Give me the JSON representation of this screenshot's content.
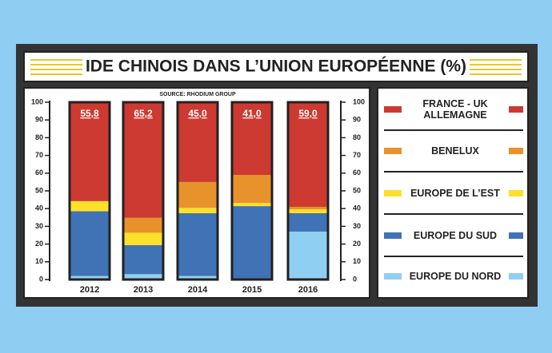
{
  "chart_data": {
    "type": "bar",
    "stacked": true,
    "title": "IDE CHINOIS DANS L’UNION EUROPÉENNE (%)",
    "source": "SOURCE: RHODIUM GROUP",
    "categories": [
      "2012",
      "2013",
      "2014",
      "2015",
      "2016"
    ],
    "series": [
      {
        "name": "EUROPE DU NORD",
        "color": "#8fd0f2",
        "values": [
          2,
          3,
          2,
          0,
          27
        ]
      },
      {
        "name": "EUROPE DU SUD",
        "color": "#3f73b5",
        "values": [
          36.5,
          16.4,
          35.4,
          41.4,
          10.4
        ]
      },
      {
        "name": "EUROPE DE L’EST",
        "color": "#fde02a",
        "values": [
          5.7,
          7,
          3,
          1.8,
          2.2
        ]
      },
      {
        "name": "BENELUX",
        "color": "#e8922b",
        "values": [
          0,
          8.4,
          14.6,
          15.8,
          1.4
        ]
      },
      {
        "name": "FRANCE - UK ALLEMAGNE",
        "color": "#cc3a31",
        "values": [
          55.8,
          65.2,
          45,
          41,
          59
        ],
        "value_labels": [
          "55,8",
          "65,2",
          "45,0",
          "41,0",
          "59,0"
        ]
      }
    ],
    "ylim": [
      0,
      100
    ],
    "yticks": [
      0,
      10,
      20,
      30,
      40,
      50,
      60,
      70,
      80,
      90,
      100
    ]
  }
}
